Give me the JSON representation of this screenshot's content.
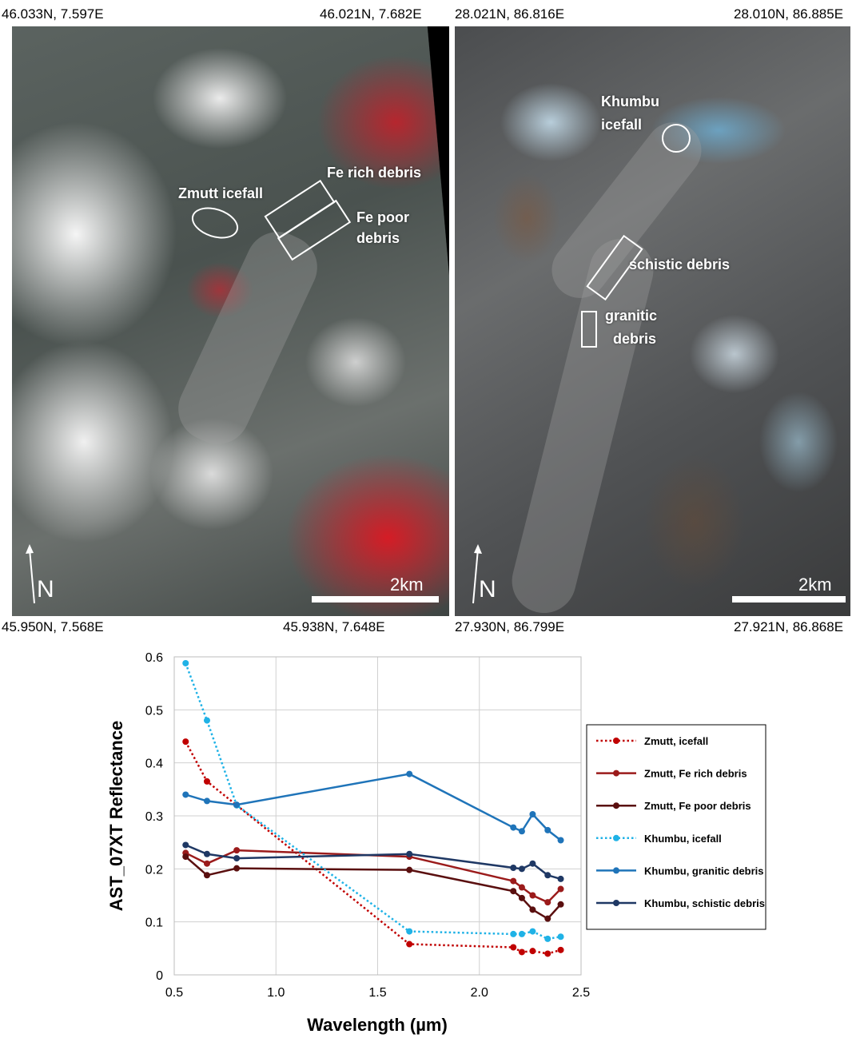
{
  "panels": {
    "zmutt": {
      "corners": {
        "top_left": "46.033N,  7.597E",
        "top_right": "46.021N,  7.682E",
        "bottom_left": "45.950N,  7.568E",
        "bottom_right": "45.938N,  7.648E"
      },
      "labels": {
        "icefall": "Zmutt icefall",
        "fe_rich_debris": "Fe rich debris",
        "fe_poor_line1": "Fe poor",
        "fe_poor_line2": "debris"
      },
      "north": "N",
      "scale": "2km"
    },
    "khumbu": {
      "corners": {
        "top_left": "28.021N, 86.816E",
        "top_right": "28.010N,  86.885E",
        "bottom_left": "27.930N,  86.799E",
        "bottom_right": "27.921N,  86.868E"
      },
      "labels": {
        "icefall_line1": "Khumbu",
        "icefall_line2": "icefall",
        "schistic_debris": "schistic debris",
        "granitic_line1": "granitic",
        "granitic_line2": "debris"
      },
      "north": "N",
      "scale": "2km"
    }
  },
  "chart_data": {
    "type": "line",
    "title": "",
    "xlabel": "Wavelength (µm)",
    "ylabel": "AST_07XT Reflectance",
    "xlim": [
      0.5,
      2.5
    ],
    "ylim": [
      0,
      0.6
    ],
    "xticks": [
      "0.5",
      "1.0",
      "1.5",
      "2.0",
      "2.5"
    ],
    "yticks": [
      "0",
      "0.1",
      "0.2",
      "0.3",
      "0.4",
      "0.5",
      "0.6"
    ],
    "grid": true,
    "legend_position": "right",
    "x": [
      0.556,
      0.661,
      0.807,
      1.656,
      2.167,
      2.209,
      2.262,
      2.336,
      2.4
    ],
    "series": [
      {
        "name": "Zmutt, icefall",
        "color": "#c00000",
        "style": "dotted",
        "values": [
          0.44,
          0.365,
          0.32,
          0.058,
          0.052,
          0.043,
          0.045,
          0.04,
          0.047
        ]
      },
      {
        "name": "Zmutt, Fe rich debris",
        "color": "#9b1b1b",
        "style": "solid",
        "values": [
          0.23,
          0.21,
          0.235,
          0.223,
          0.177,
          0.165,
          0.15,
          0.137,
          0.162
        ]
      },
      {
        "name": "Zmutt, Fe poor debris",
        "color": "#5a0f0f",
        "style": "solid",
        "values": [
          0.223,
          0.188,
          0.201,
          0.198,
          0.158,
          0.145,
          0.123,
          0.106,
          0.133
        ]
      },
      {
        "name": "Khumbu, icefall",
        "color": "#1fb2e6",
        "style": "dotted",
        "values": [
          0.588,
          0.48,
          0.32,
          0.082,
          0.077,
          0.077,
          0.082,
          0.068,
          0.072
        ]
      },
      {
        "name": "Khumbu, granitic debris",
        "color": "#1f74b9",
        "style": "solid",
        "values": [
          0.34,
          0.328,
          0.321,
          0.379,
          0.278,
          0.271,
          0.303,
          0.273,
          0.254
        ]
      },
      {
        "name": "Khumbu, schistic debris",
        "color": "#1f3864",
        "style": "solid",
        "values": [
          0.245,
          0.228,
          0.22,
          0.228,
          0.202,
          0.2,
          0.21,
          0.188,
          0.181
        ]
      }
    ]
  }
}
